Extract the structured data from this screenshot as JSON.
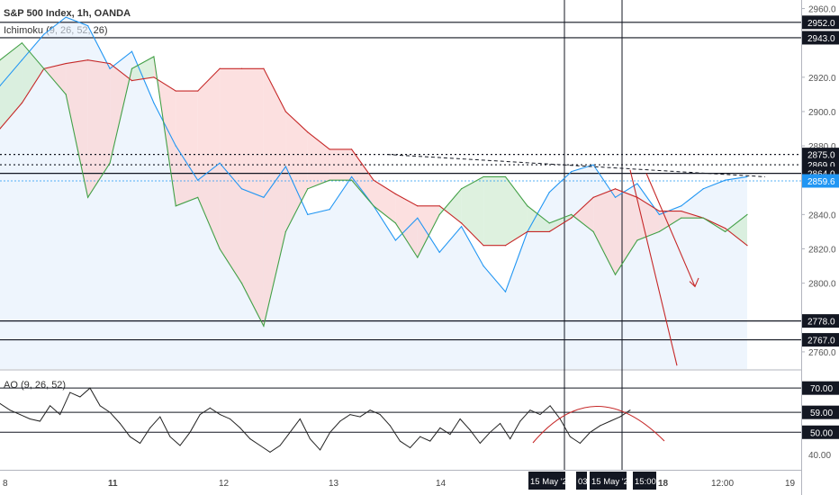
{
  "header": {
    "title": "S&P 500 Index, 1h, OANDA",
    "indicator": "Ichimoku (9, 26, 52, 26)",
    "oscillator": "AO (9, 26, 52)"
  },
  "colors": {
    "blue_line": "#2196f3",
    "red_line": "#c62828",
    "green_line": "#43a047",
    "cloud_red": "#fbd5d5",
    "cloud_green": "#d3ecd4",
    "shade_blue": "#e3effb",
    "osc_line": "#222222",
    "last_price_bg": "#2196f3",
    "tag_bg": "#131722"
  },
  "chart_data": [
    {
      "type": "line",
      "panel": "price",
      "title": "S&P 500 Index, 1h, OANDA",
      "ylim": [
        2750,
        2965
      ],
      "y_ticks": [
        2760,
        2780,
        2800,
        2820,
        2840,
        2860,
        2880,
        2900,
        2920,
        2940,
        2960
      ],
      "x_ticks": [
        "8",
        "11",
        "12",
        "13",
        "14",
        "15 May '20",
        "18",
        "12:00",
        "19"
      ],
      "x": [
        0,
        4,
        8,
        12,
        16,
        20,
        24,
        28,
        32,
        36,
        40,
        44,
        48,
        52,
        56,
        60,
        64,
        68,
        72,
        76,
        80,
        84,
        88,
        92,
        96,
        100,
        104,
        108,
        112,
        116,
        120,
        124,
        128,
        132,
        136
      ],
      "series": [
        {
          "values": [
            2915,
            2930,
            2945,
            2955,
            2950,
            2925,
            2935,
            2905,
            2880,
            2860,
            2870,
            2855,
            2850,
            2868,
            2840,
            2843,
            2862,
            2845,
            2825,
            2838,
            2818,
            2833,
            2810,
            2795,
            2830,
            2853,
            2865,
            2869,
            2850,
            2858,
            2840,
            2845,
            2855,
            2860,
            2862
          ],
          "color": "blue_line"
        },
        {
          "values": [
            2890,
            2905,
            2925,
            2928,
            2930,
            2928,
            2918,
            2920,
            2912,
            2912,
            2925,
            2925,
            2925,
            2900,
            2888,
            2878,
            2878,
            2860,
            2852,
            2845,
            2845,
            2835,
            2822,
            2822,
            2830,
            2830,
            2838,
            2850,
            2855,
            2850,
            2842,
            2842,
            2838,
            2832,
            2822
          ],
          "color": "red_line"
        },
        {
          "values": [
            2930,
            2940,
            2925,
            2910,
            2850,
            2870,
            2925,
            2932,
            2845,
            2850,
            2820,
            2800,
            2775,
            2830,
            2855,
            2860,
            2860,
            2845,
            2835,
            2815,
            2840,
            2855,
            2862,
            2862,
            2845,
            2835,
            2840,
            2830,
            2805,
            2825,
            2830,
            2838,
            2838,
            2830,
            2840
          ],
          "color": "green_line"
        }
      ],
      "horizontal_levels": [
        2952.0,
        2943.0,
        2875.0,
        2869.0,
        2864.0,
        2859.6,
        2778.0,
        2767.0
      ],
      "last_price": 2859.6
    },
    {
      "type": "line",
      "panel": "oscillator",
      "title": "AO (9, 26, 52)",
      "ylim": [
        33,
        77
      ],
      "y_ticks": [
        40.0,
        50.0,
        59.0,
        70.0
      ],
      "levels": [
        70.0,
        59.0,
        50.0
      ],
      "series": [
        {
          "values": [
            63,
            60,
            58,
            56,
            55,
            62,
            58,
            68,
            66,
            70,
            62,
            59,
            54,
            48,
            45,
            52,
            57,
            48,
            44,
            50,
            58,
            61,
            58,
            56,
            52,
            47,
            44,
            41,
            44,
            50,
            56,
            47,
            42,
            50,
            55,
            58,
            57,
            60,
            58,
            53,
            46,
            43,
            48,
            46,
            52,
            49,
            56,
            51,
            45,
            50,
            54,
            47,
            55,
            60,
            58,
            62,
            56,
            48,
            45,
            50,
            53,
            55,
            57,
            60
          ],
          "color": "osc_line"
        }
      ]
    }
  ],
  "price_axis": {
    "labels": [
      "2960.0",
      "2920.0",
      "2900.0",
      "2880.0",
      "2840.0",
      "2820.0",
      "2800.0",
      "2760.0"
    ],
    "tags": [
      "2952.0",
      "2943.0",
      "2875.0",
      "2869.0",
      "2864.0",
      "2859.6",
      "2778.0",
      "2767.0"
    ]
  },
  "osc_axis": {
    "labels": [
      "40.00"
    ],
    "tags": [
      "70.00",
      "59.00",
      "50.00"
    ]
  },
  "time_axis": {
    "labels": [
      "8",
      "11",
      "12",
      "13",
      "14",
      "18",
      "12:00",
      "19"
    ],
    "tags": [
      "15 May '20",
      "03",
      "15 May '20",
      "15:00"
    ]
  }
}
